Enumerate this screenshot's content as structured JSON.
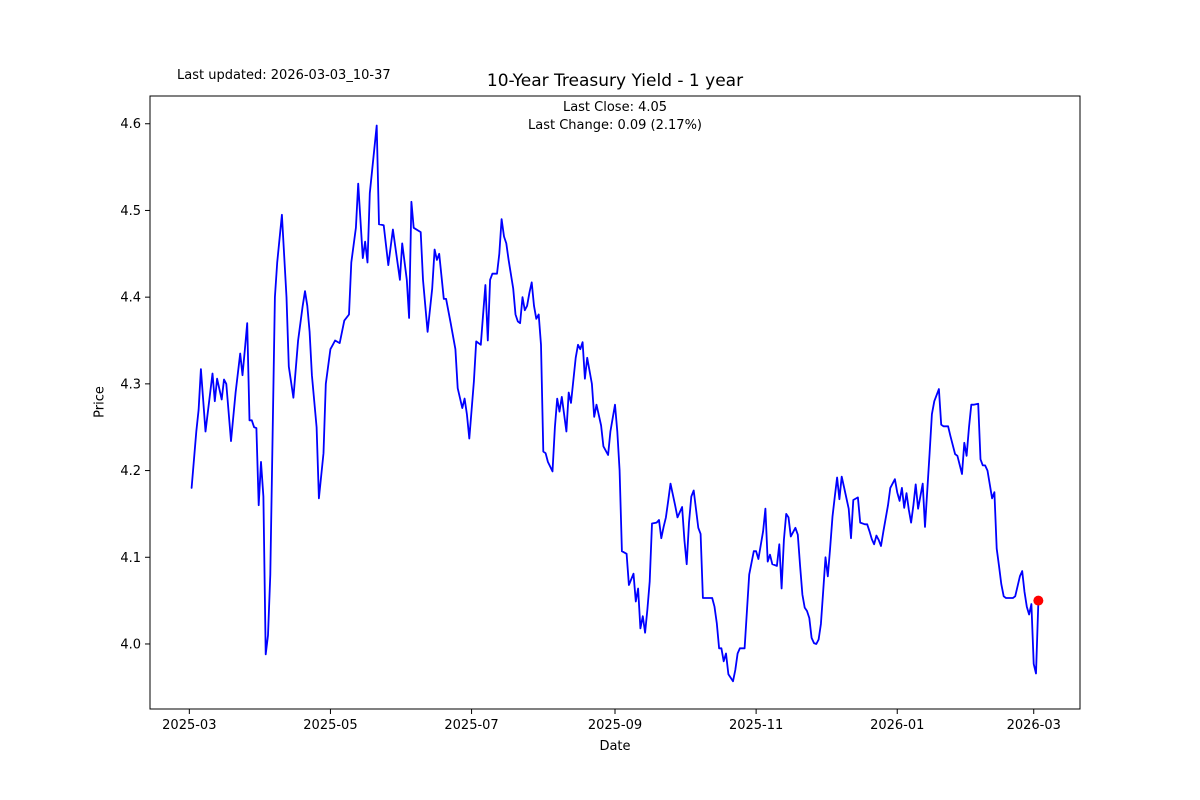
{
  "header": {
    "last_updated": "Last updated: 2026-03-03_10-37"
  },
  "chart": {
    "title": "10-Year Treasury Yield - 1 year",
    "annotation_line1": "Last Close: 4.05",
    "annotation_line2": "Last Change: 0.09 (2.17%)"
  },
  "chart_data": {
    "type": "line",
    "title": "10-Year Treasury Yield - 1 year",
    "xlabel": "Date",
    "ylabel": "Price",
    "legend": [],
    "grid": false,
    "line_color": "#0000ff",
    "line_width": 1.8,
    "marker_color": "#ff0000",
    "last_close": 4.05,
    "last_change": 0.09,
    "last_change_pct": "2.17%",
    "x_unit": "days since 2025-03-01 (axis spans 2025-03 to 2026-03)",
    "x_start_date": "2025-03-01",
    "xlim_days": [
      -17,
      385
    ],
    "ylim": [
      3.925,
      4.632
    ],
    "yticks": [
      4.0,
      4.1,
      4.2,
      4.3,
      4.4,
      4.5,
      4.6
    ],
    "ytick_labels": [
      "4.0",
      "4.1",
      "4.2",
      "4.3",
      "4.4",
      "4.5",
      "4.6"
    ],
    "xticks": [
      {
        "d": 0,
        "label": "2025-03"
      },
      {
        "d": 61,
        "label": "2025-05"
      },
      {
        "d": 122,
        "label": "2025-07"
      },
      {
        "d": 184,
        "label": "2025-09"
      },
      {
        "d": 245,
        "label": "2025-11"
      },
      {
        "d": 306,
        "label": "2026-01"
      },
      {
        "d": 365,
        "label": "2026-03"
      }
    ],
    "points": [
      [
        1,
        4.18
      ],
      [
        3,
        4.245
      ],
      [
        4,
        4.27
      ],
      [
        5,
        4.317
      ],
      [
        7,
        4.245
      ],
      [
        10,
        4.312
      ],
      [
        11,
        4.28
      ],
      [
        12,
        4.306
      ],
      [
        14,
        4.282
      ],
      [
        15,
        4.305
      ],
      [
        16,
        4.3
      ],
      [
        18,
        4.234
      ],
      [
        20,
        4.29
      ],
      [
        22,
        4.335
      ],
      [
        23,
        4.31
      ],
      [
        24,
        4.34
      ],
      [
        25,
        4.37
      ],
      [
        26,
        4.258
      ],
      [
        27,
        4.258
      ],
      [
        28,
        4.25
      ],
      [
        29,
        4.249
      ],
      [
        30,
        4.16
      ],
      [
        31,
        4.21
      ],
      [
        32,
        4.17
      ],
      [
        33,
        3.988
      ],
      [
        34,
        4.01
      ],
      [
        35,
        4.08
      ],
      [
        37,
        4.4
      ],
      [
        38,
        4.44
      ],
      [
        40,
        4.495
      ],
      [
        42,
        4.4
      ],
      [
        43,
        4.32
      ],
      [
        45,
        4.284
      ],
      [
        47,
        4.35
      ],
      [
        49,
        4.39
      ],
      [
        50,
        4.407
      ],
      [
        51,
        4.39
      ],
      [
        52,
        4.36
      ],
      [
        53,
        4.31
      ],
      [
        55,
        4.25
      ],
      [
        56,
        4.168
      ],
      [
        58,
        4.22
      ],
      [
        59,
        4.3
      ],
      [
        61,
        4.34
      ],
      [
        62,
        4.345
      ],
      [
        63,
        4.35
      ],
      [
        65,
        4.347
      ],
      [
        67,
        4.373
      ],
      [
        69,
        4.38
      ],
      [
        70,
        4.44
      ],
      [
        72,
        4.48
      ],
      [
        73,
        4.531
      ],
      [
        75,
        4.445
      ],
      [
        76,
        4.464
      ],
      [
        77,
        4.44
      ],
      [
        78,
        4.52
      ],
      [
        81,
        4.598
      ],
      [
        82,
        4.484
      ],
      [
        84,
        4.483
      ],
      [
        86,
        4.437
      ],
      [
        88,
        4.478
      ],
      [
        90,
        4.44
      ],
      [
        91,
        4.42
      ],
      [
        92,
        4.462
      ],
      [
        94,
        4.42
      ],
      [
        95,
        4.376
      ],
      [
        96,
        4.51
      ],
      [
        97,
        4.48
      ],
      [
        100,
        4.475
      ],
      [
        101,
        4.42
      ],
      [
        103,
        4.36
      ],
      [
        105,
        4.41
      ],
      [
        106,
        4.455
      ],
      [
        107,
        4.443
      ],
      [
        108,
        4.45
      ],
      [
        110,
        4.398
      ],
      [
        111,
        4.398
      ],
      [
        113,
        4.37
      ],
      [
        115,
        4.34
      ],
      [
        116,
        4.295
      ],
      [
        118,
        4.272
      ],
      [
        119,
        4.283
      ],
      [
        120,
        4.265
      ],
      [
        121,
        4.237
      ],
      [
        122,
        4.27
      ],
      [
        123,
        4.303
      ],
      [
        124,
        4.349
      ],
      [
        126,
        4.345
      ],
      [
        127,
        4.38
      ],
      [
        128,
        4.414
      ],
      [
        129,
        4.35
      ],
      [
        130,
        4.42
      ],
      [
        131,
        4.427
      ],
      [
        133,
        4.427
      ],
      [
        134,
        4.45
      ],
      [
        135,
        4.49
      ],
      [
        136,
        4.47
      ],
      [
        137,
        4.462
      ],
      [
        138,
        4.443
      ],
      [
        140,
        4.41
      ],
      [
        141,
        4.38
      ],
      [
        142,
        4.372
      ],
      [
        143,
        4.37
      ],
      [
        144,
        4.4
      ],
      [
        145,
        4.385
      ],
      [
        146,
        4.39
      ],
      [
        147,
        4.405
      ],
      [
        148,
        4.417
      ],
      [
        149,
        4.39
      ],
      [
        150,
        4.375
      ],
      [
        151,
        4.38
      ],
      [
        152,
        4.345
      ],
      [
        153,
        4.222
      ],
      [
        154,
        4.22
      ],
      [
        155,
        4.21
      ],
      [
        157,
        4.199
      ],
      [
        158,
        4.25
      ],
      [
        159,
        4.283
      ],
      [
        160,
        4.268
      ],
      [
        161,
        4.285
      ],
      [
        163,
        4.245
      ],
      [
        164,
        4.29
      ],
      [
        165,
        4.278
      ],
      [
        167,
        4.33
      ],
      [
        168,
        4.345
      ],
      [
        169,
        4.34
      ],
      [
        170,
        4.348
      ],
      [
        171,
        4.306
      ],
      [
        172,
        4.33
      ],
      [
        174,
        4.3
      ],
      [
        175,
        4.262
      ],
      [
        176,
        4.276
      ],
      [
        178,
        4.252
      ],
      [
        179,
        4.228
      ],
      [
        181,
        4.218
      ],
      [
        182,
        4.245
      ],
      [
        184,
        4.276
      ],
      [
        185,
        4.245
      ],
      [
        186,
        4.2
      ],
      [
        187,
        4.107
      ],
      [
        189,
        4.104
      ],
      [
        190,
        4.068
      ],
      [
        192,
        4.081
      ],
      [
        193,
        4.049
      ],
      [
        194,
        4.064
      ],
      [
        195,
        4.018
      ],
      [
        196,
        4.032
      ],
      [
        197,
        4.013
      ],
      [
        198,
        4.04
      ],
      [
        199,
        4.072
      ],
      [
        200,
        4.139
      ],
      [
        202,
        4.14
      ],
      [
        203,
        4.143
      ],
      [
        204,
        4.122
      ],
      [
        205,
        4.135
      ],
      [
        206,
        4.146
      ],
      [
        207,
        4.165
      ],
      [
        208,
        4.185
      ],
      [
        210,
        4.16
      ],
      [
        211,
        4.146
      ],
      [
        213,
        4.158
      ],
      [
        214,
        4.12
      ],
      [
        215,
        4.092
      ],
      [
        216,
        4.14
      ],
      [
        217,
        4.17
      ],
      [
        218,
        4.177
      ],
      [
        220,
        4.134
      ],
      [
        221,
        4.127
      ],
      [
        222,
        4.053
      ],
      [
        224,
        4.053
      ],
      [
        226,
        4.053
      ],
      [
        227,
        4.043
      ],
      [
        228,
        4.024
      ],
      [
        229,
        3.995
      ],
      [
        230,
        3.995
      ],
      [
        231,
        3.98
      ],
      [
        232,
        3.989
      ],
      [
        233,
        3.965
      ],
      [
        235,
        3.957
      ],
      [
        236,
        3.97
      ],
      [
        237,
        3.989
      ],
      [
        238,
        3.995
      ],
      [
        240,
        3.995
      ],
      [
        242,
        4.08
      ],
      [
        244,
        4.107
      ],
      [
        245,
        4.107
      ],
      [
        246,
        4.098
      ],
      [
        248,
        4.13
      ],
      [
        249,
        4.156
      ],
      [
        250,
        4.095
      ],
      [
        251,
        4.103
      ],
      [
        252,
        4.092
      ],
      [
        254,
        4.09
      ],
      [
        255,
        4.115
      ],
      [
        256,
        4.064
      ],
      [
        257,
        4.12
      ],
      [
        258,
        4.15
      ],
      [
        259,
        4.146
      ],
      [
        260,
        4.124
      ],
      [
        262,
        4.134
      ],
      [
        263,
        4.126
      ],
      [
        264,
        4.09
      ],
      [
        265,
        4.057
      ],
      [
        266,
        4.042
      ],
      [
        267,
        4.038
      ],
      [
        268,
        4.03
      ],
      [
        269,
        4.007
      ],
      [
        270,
        4.001
      ],
      [
        271,
        4.0
      ],
      [
        272,
        4.005
      ],
      [
        273,
        4.023
      ],
      [
        274,
        4.061
      ],
      [
        275,
        4.1
      ],
      [
        276,
        4.078
      ],
      [
        277,
        4.11
      ],
      [
        278,
        4.147
      ],
      [
        279,
        4.17
      ],
      [
        280,
        4.192
      ],
      [
        281,
        4.167
      ],
      [
        282,
        4.193
      ],
      [
        283,
        4.181
      ],
      [
        285,
        4.156
      ],
      [
        286,
        4.122
      ],
      [
        287,
        4.166
      ],
      [
        289,
        4.169
      ],
      [
        290,
        4.14
      ],
      [
        292,
        4.138
      ],
      [
        293,
        4.138
      ],
      [
        294,
        4.13
      ],
      [
        295,
        4.121
      ],
      [
        296,
        4.115
      ],
      [
        297,
        4.125
      ],
      [
        298,
        4.12
      ],
      [
        299,
        4.113
      ],
      [
        300,
        4.13
      ],
      [
        302,
        4.16
      ],
      [
        303,
        4.18
      ],
      [
        305,
        4.19
      ],
      [
        306,
        4.175
      ],
      [
        307,
        4.165
      ],
      [
        308,
        4.18
      ],
      [
        309,
        4.157
      ],
      [
        310,
        4.174
      ],
      [
        311,
        4.155
      ],
      [
        312,
        4.14
      ],
      [
        313,
        4.16
      ],
      [
        314,
        4.184
      ],
      [
        315,
        4.156
      ],
      [
        317,
        4.185
      ],
      [
        318,
        4.135
      ],
      [
        320,
        4.22
      ],
      [
        321,
        4.265
      ],
      [
        322,
        4.28
      ],
      [
        324,
        4.294
      ],
      [
        325,
        4.253
      ],
      [
        326,
        4.251
      ],
      [
        328,
        4.251
      ],
      [
        329,
        4.24
      ],
      [
        331,
        4.219
      ],
      [
        332,
        4.217
      ],
      [
        334,
        4.196
      ],
      [
        335,
        4.232
      ],
      [
        336,
        4.217
      ],
      [
        337,
        4.25
      ],
      [
        338,
        4.276
      ],
      [
        339,
        4.276
      ],
      [
        341,
        4.277
      ],
      [
        342,
        4.213
      ],
      [
        343,
        4.206
      ],
      [
        344,
        4.206
      ],
      [
        345,
        4.2
      ],
      [
        347,
        4.168
      ],
      [
        348,
        4.175
      ],
      [
        349,
        4.11
      ],
      [
        350,
        4.09
      ],
      [
        351,
        4.069
      ],
      [
        352,
        4.055
      ],
      [
        353,
        4.053
      ],
      [
        355,
        4.053
      ],
      [
        356,
        4.053
      ],
      [
        357,
        4.055
      ],
      [
        359,
        4.078
      ],
      [
        360,
        4.084
      ],
      [
        361,
        4.06
      ],
      [
        362,
        4.043
      ],
      [
        363,
        4.034
      ],
      [
        364,
        4.046
      ],
      [
        365,
        3.977
      ],
      [
        366,
        3.966
      ],
      [
        367,
        4.05
      ]
    ]
  }
}
